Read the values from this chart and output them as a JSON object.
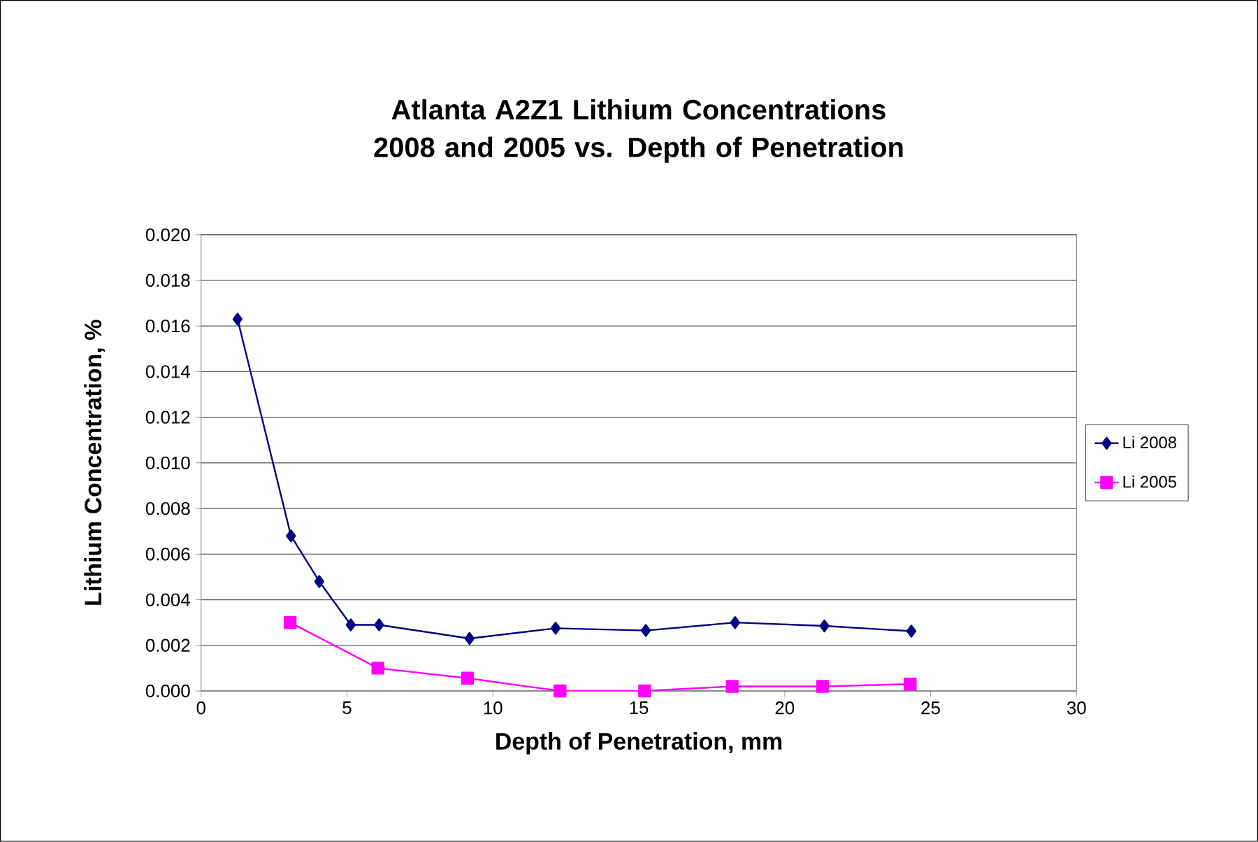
{
  "chart_data": {
    "type": "line",
    "title": "Atlanta A2Z1 Lithium Concentrations 2008 and 2005  vs. Depth of Penetration",
    "xlabel": "Depth of Penetration, mm",
    "ylabel": "Lithium Concentration, %",
    "xlim": [
      0,
      30
    ],
    "xticks": [
      0,
      5,
      10,
      15,
      20,
      25,
      30
    ],
    "ylim": [
      0,
      0.02
    ],
    "yticks": [
      {
        "value": 0,
        "label": "0.000"
      },
      {
        "value": 0.002,
        "label": "0.002"
      },
      {
        "value": 0.004,
        "label": "0.004"
      },
      {
        "value": 0.006,
        "label": "0.006"
      },
      {
        "value": 0.008,
        "label": "0.008"
      },
      {
        "value": 0.01,
        "label": "0.010"
      },
      {
        "value": 0.012,
        "label": "0.012"
      },
      {
        "value": 0.014,
        "label": "0.014"
      },
      {
        "value": 0.016,
        "label": "0.016"
      },
      {
        "value": 0.018,
        "label": "0.018"
      },
      {
        "value": 0.02,
        "label": "0.020"
      }
    ],
    "grid": "y",
    "legend": "right",
    "series": [
      {
        "name": "Li 2008",
        "color": "#000080",
        "marker": "diamond",
        "x": [
          1.25,
          3.08,
          4.05,
          5.13,
          6.1,
          9.2,
          12.15,
          15.24,
          18.3,
          21.36,
          24.34
        ],
        "values": [
          0.0163,
          0.0068,
          0.0048,
          0.0029,
          0.0029,
          0.0023,
          0.00275,
          0.00265,
          0.003,
          0.00285,
          0.00262
        ]
      },
      {
        "name": "Li 2005",
        "color": "#ff00ff",
        "marker": "square",
        "x": [
          3.05,
          6.06,
          9.13,
          12.3,
          15.2,
          18.2,
          21.3,
          24.3
        ],
        "values": [
          0.003,
          0.001,
          0.00056,
          0,
          0,
          0.0002,
          0.0002,
          0.0003
        ]
      }
    ]
  }
}
